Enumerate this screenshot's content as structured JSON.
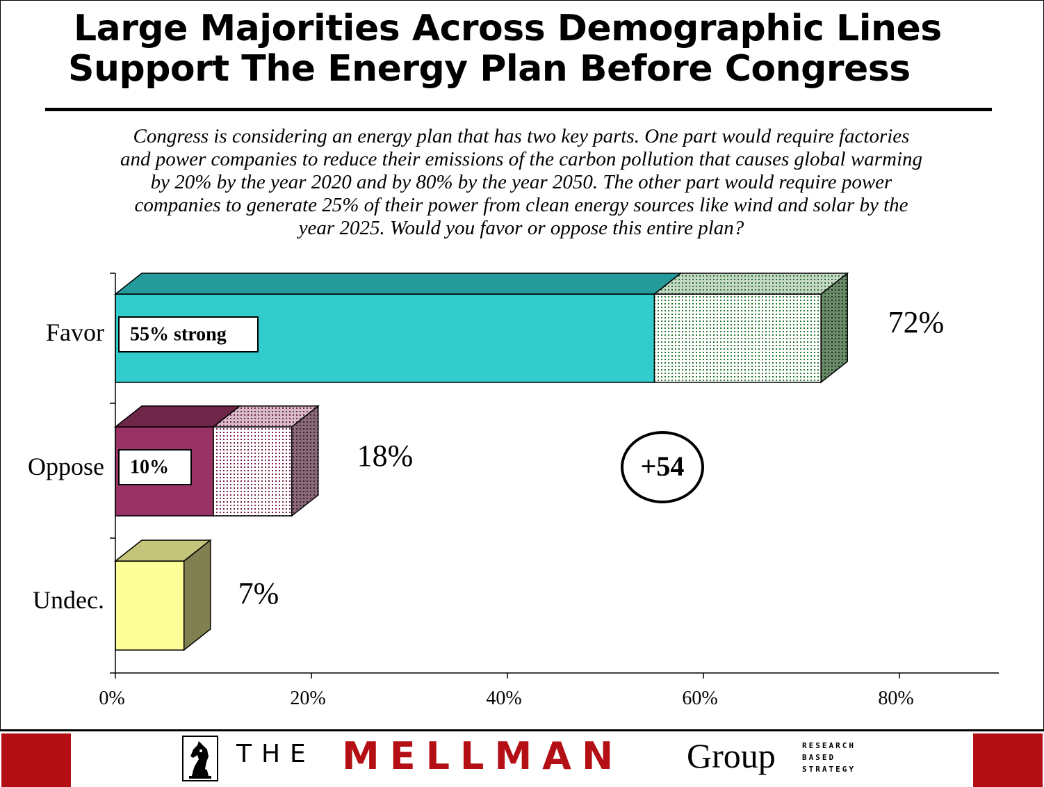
{
  "title": {
    "line1": "Large Majorities Across Demographic Lines",
    "line2": "Support The Energy Plan Before Congress"
  },
  "question": "Congress is considering an energy plan that has two key parts.  One part would require factories\nand power companies to reduce their emissions of the carbon pollution that causes global warming\nby 20% by the year 2020 and by 80% by the year 2050.  The other part would require power\ncompanies to generate 25% of their power from clean energy sources like wind and solar by the\nyear 2025. Would you favor or oppose this entire plan?",
  "chart_data": {
    "type": "bar",
    "orientation": "horizontal",
    "stacked": true,
    "categories": [
      "Favor",
      "Oppose",
      "Undec."
    ],
    "series": [
      {
        "name": "strong",
        "values": [
          55,
          10,
          7
        ]
      },
      {
        "name": "",
        "values": [
          17,
          8,
          0
        ]
      }
    ],
    "totals": [
      72,
      18,
      7
    ],
    "total_labels": [
      "72%",
      "18%",
      "7%"
    ],
    "inner_labels": [
      "55% strong",
      "10%",
      ""
    ],
    "annotation": "+54",
    "xlim": [
      0,
      90
    ],
    "xticks": [
      0,
      20,
      40,
      60,
      80
    ],
    "xtick_labels": [
      "0%",
      "20%",
      "40%",
      "60%",
      "80%"
    ],
    "colors": {
      "favor_strong": "#33cccc",
      "favor_strong_top": "#259a9a",
      "favor_soft_dots": "#1f7a2a",
      "oppose_strong": "#993366",
      "oppose_strong_top": "#6e2649",
      "oppose_soft_dots": "#7a1f4a",
      "undec": "#ffff99",
      "undec_top": "#c4c47a",
      "undec_side": "#808050"
    }
  },
  "footer": {
    "the": "THE",
    "mellman": "MELLMAN",
    "group": "Group",
    "tagline": [
      "RESEARCH",
      "BASED",
      "STRATEGY"
    ],
    "icon": "knight-chess-icon"
  }
}
